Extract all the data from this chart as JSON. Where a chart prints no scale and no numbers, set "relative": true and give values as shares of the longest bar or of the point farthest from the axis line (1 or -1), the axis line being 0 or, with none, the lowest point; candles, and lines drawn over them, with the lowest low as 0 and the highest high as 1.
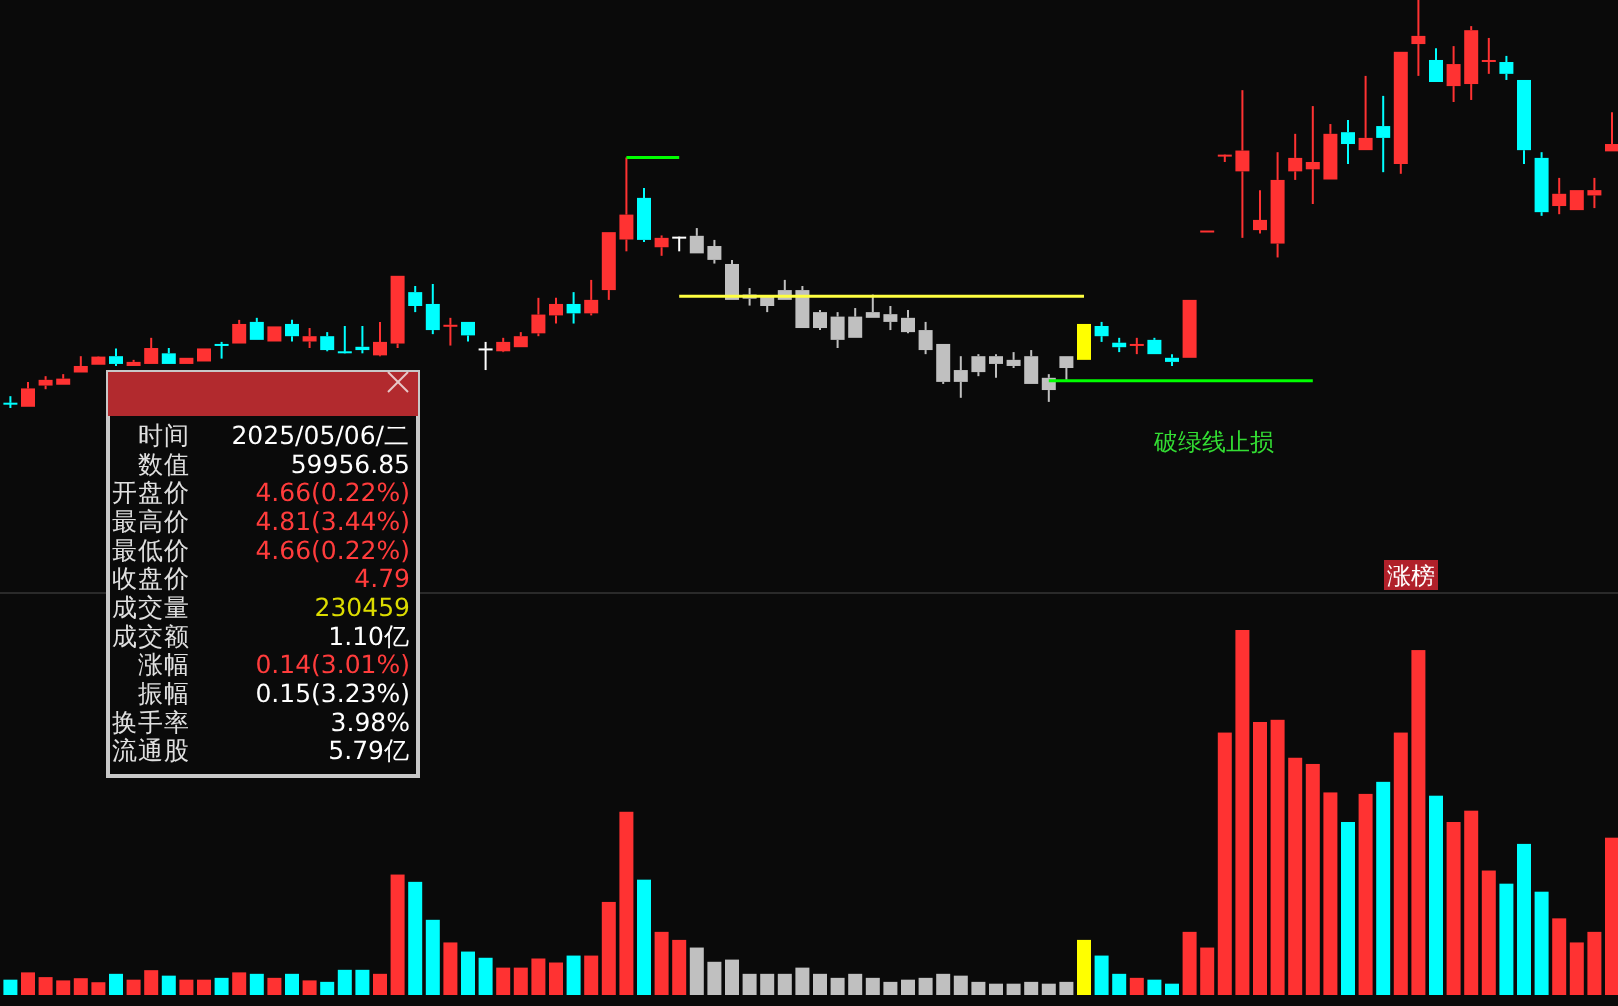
{
  "chart_data": [
    {
      "type": "candlestick",
      "relative": true,
      "categories": [
        null,
        null,
        null,
        null,
        null,
        null,
        null,
        null,
        null,
        null,
        null,
        null,
        null,
        null,
        null,
        null,
        null,
        null,
        null,
        null,
        null,
        null,
        null,
        null,
        null,
        null,
        null,
        null,
        null,
        null,
        null,
        null,
        null,
        null,
        null,
        null,
        null,
        null,
        null,
        null,
        null,
        null,
        null,
        null,
        null,
        null,
        null,
        null,
        null,
        null,
        null,
        null,
        null,
        null,
        null,
        null,
        null,
        null,
        null,
        null,
        null,
        null,
        null,
        null,
        null,
        null,
        null,
        null,
        null,
        null,
        null,
        null,
        null,
        null,
        null,
        null,
        null,
        null,
        null,
        null,
        null,
        null,
        null,
        null,
        null,
        null,
        null,
        null,
        null,
        null,
        null,
        null
      ],
      "ohlc": [
        [
          0.013,
          0.029,
          0,
          0.013
        ],
        [
          0.003,
          0.064,
          0.003,
          0.048
        ],
        [
          0.055,
          0.078,
          0.046,
          0.069
        ],
        [
          0.057,
          0.083,
          0.057,
          0.072
        ],
        [
          0.087,
          0.127,
          0.087,
          0.103
        ],
        [
          0.106,
          0.127,
          0.106,
          0.126
        ],
        [
          0.127,
          0.146,
          0.103,
          0.108
        ],
        [
          0.103,
          0.118,
          0.103,
          0.113
        ],
        [
          0.108,
          0.172,
          0.108,
          0.147
        ],
        [
          0.134,
          0.147,
          0.108,
          0.108
        ],
        [
          0.108,
          0.123,
          0.108,
          0.123
        ],
        [
          0.114,
          0.146,
          0.114,
          0.146
        ],
        [
          0.157,
          0.162,
          0.121,
          0.157
        ],
        [
          0.158,
          0.216,
          0.158,
          0.206
        ],
        [
          0.211,
          0.221,
          0.167,
          0.167
        ],
        [
          0.163,
          0.2,
          0.163,
          0.2
        ],
        [
          0.206,
          0.216,
          0.163,
          0.176
        ],
        [
          0.163,
          0.196,
          0.147,
          0.176
        ],
        [
          0.176,
          0.186,
          0.139,
          0.142
        ],
        [
          0.139,
          0.201,
          0.134,
          0.139
        ],
        [
          0.15,
          0.201,
          0.134,
          0.142
        ],
        [
          0.129,
          0.211,
          0.127,
          0.162
        ],
        [
          0.158,
          0.324,
          0.147,
          0.324
        ],
        [
          0.284,
          0.299,
          0.235,
          0.25
        ],
        [
          0.255,
          0.304,
          0.181,
          0.191
        ],
        [
          0.204,
          0.221,
          0.153,
          0.204
        ],
        [
          0.211,
          0.211,
          0.163,
          0.178
        ],
        [
          0.146,
          0.162,
          0.093,
          0.146
        ],
        [
          0.139,
          0.172,
          0.137,
          0.162
        ],
        [
          0.149,
          0.186,
          0.149,
          0.176
        ],
        [
          0.183,
          0.27,
          0.176,
          0.229
        ],
        [
          0.227,
          0.27,
          0.207,
          0.255
        ],
        [
          0.255,
          0.284,
          0.207,
          0.232
        ],
        [
          0.232,
          0.314,
          0.227,
          0.265
        ],
        [
          0.289,
          0.431,
          0.265,
          0.431
        ],
        [
          0.413,
          0.614,
          0.384,
          0.474
        ],
        [
          0.515,
          0.539,
          0.407,
          0.412
        ],
        [
          0.394,
          0.423,
          0.373,
          0.417
        ],
        [
          0.42,
          0.42,
          0.384,
          0.42
        ],
        [
          0.422,
          0.441,
          0.379,
          0.379
        ],
        [
          0.397,
          0.412,
          0.354,
          0.363
        ],
        [
          0.353,
          0.363,
          0.265,
          0.265
        ],
        [
          0.278,
          0.294,
          0.251,
          0.268
        ],
        [
          0.273,
          0.273,
          0.235,
          0.25
        ],
        [
          0.289,
          0.314,
          0.265,
          0.265
        ],
        [
          0.289,
          0.299,
          0.196,
          0.196
        ],
        [
          0.235,
          0.24,
          0.191,
          0.196
        ],
        [
          0.224,
          0.235,
          0.147,
          0.167
        ],
        [
          0.224,
          0.245,
          0.172,
          0.172
        ],
        [
          0.235,
          0.278,
          0.221,
          0.221
        ],
        [
          0.23,
          0.25,
          0.191,
          0.211
        ],
        [
          0.221,
          0.24,
          0.183,
          0.186
        ],
        [
          0.191,
          0.211,
          0.132,
          0.142
        ],
        [
          0.157,
          0.157,
          0.059,
          0.064
        ],
        [
          0.093,
          0.127,
          0.025,
          0.064
        ],
        [
          0.127,
          0.132,
          0.078,
          0.088
        ],
        [
          0.127,
          0.132,
          0.074,
          0.108
        ],
        [
          0.118,
          0.137,
          0.098,
          0.103
        ],
        [
          0.127,
          0.142,
          0.059,
          0.059
        ],
        [
          0.074,
          0.083,
          0.015,
          0.044
        ],
        [
          0.127,
          0.127,
          0.069,
          0.098
        ],
        [
          0.118,
          0.206,
          0.118,
          0.206
        ],
        [
          0.201,
          0.211,
          0.162,
          0.176
        ],
        [
          0.16,
          0.172,
          0.137,
          0.149
        ],
        [
          0.157,
          0.172,
          0.132,
          0.157
        ],
        [
          0.167,
          0.172,
          0.132,
          0.132
        ],
        [
          0.123,
          0.132,
          0.103,
          0.113
        ],
        [
          0.123,
          0.265,
          0.123,
          0.265
        ],
        [
          0.435,
          0.435,
          0.435,
          0.435
        ],
        [
          0.621,
          0.621,
          0.603,
          0.621
        ],
        [
          0.58,
          0.779,
          0.417,
          0.631
        ],
        [
          0.436,
          0.534,
          0.428,
          0.461
        ],
        [
          0.403,
          0.627,
          0.369,
          0.559
        ],
        [
          0.58,
          0.672,
          0.559,
          0.613
        ],
        [
          0.585,
          0.74,
          0.5,
          0.603
        ],
        [
          0.56,
          0.696,
          0.56,
          0.672
        ],
        [
          0.676,
          0.706,
          0.598,
          0.647
        ],
        [
          0.632,
          0.814,
          0.632,
          0.662
        ],
        [
          0.691,
          0.765,
          0.578,
          0.662
        ],
        [
          0.598,
          0.873,
          0.574,
          0.873
        ],
        [
          0.892,
          1,
          0.814,
          0.912
        ],
        [
          0.853,
          0.882,
          0.799,
          0.799
        ],
        [
          0.789,
          0.887,
          0.75,
          0.843
        ],
        [
          0.794,
          0.936,
          0.755,
          0.926
        ],
        [
          0.853,
          0.907,
          0.819,
          0.853
        ],
        [
          0.848,
          0.863,
          0.804,
          0.819
        ],
        [
          0.804,
          0.804,
          0.598,
          0.632
        ],
        [
          0.613,
          0.627,
          0.471,
          0.48
        ],
        [
          0.495,
          0.564,
          0.475,
          0.525
        ],
        [
          0.485,
          0.534,
          0.485,
          0.534
        ],
        [
          0.521,
          0.564,
          0.49,
          0.534
        ],
        [
          0.629,
          0.725,
          0.629,
          0.647
        ]
      ],
      "colors": [
        "#00ffff",
        "#ff3232",
        "#ff3232",
        "#ff3232",
        "#ff3232",
        "#ff3232",
        "#00ffff",
        "#ff3232",
        "#ff3232",
        "#00ffff",
        "#ff3232",
        "#ff3232",
        "#00ffff",
        "#ff3232",
        "#00ffff",
        "#ff3232",
        "#00ffff",
        "#ff3232",
        "#00ffff",
        "#00ffff",
        "#00ffff",
        "#ff3232",
        "#ff3232",
        "#00ffff",
        "#00ffff",
        "#ff3232",
        "#00ffff",
        "#ffffff",
        "#ff3232",
        "#ff3232",
        "#ff3232",
        "#ff3232",
        "#00ffff",
        "#ff3232",
        "#ff3232",
        "#ff3232",
        "#00ffff",
        "#ff3232",
        "#ffffff",
        "#c0c0c0",
        "#c0c0c0",
        "#c0c0c0",
        "#c0c0c0",
        "#c0c0c0",
        "#c0c0c0",
        "#c0c0c0",
        "#c0c0c0",
        "#c0c0c0",
        "#c0c0c0",
        "#c0c0c0",
        "#c0c0c0",
        "#c0c0c0",
        "#c0c0c0",
        "#c0c0c0",
        "#c0c0c0",
        "#c0c0c0",
        "#c0c0c0",
        "#c0c0c0",
        "#c0c0c0",
        "#c0c0c0",
        "#c0c0c0",
        "#ffff00",
        "#00ffff",
        "#00ffff",
        "#ff3232",
        "#00ffff",
        "#00ffff",
        "#ff3232",
        "#ff3232",
        "#ff3232",
        "#ff3232",
        "#ff3232",
        "#ff3232",
        "#ff3232",
        "#ff3232",
        "#ff3232",
        "#00ffff",
        "#ff3232",
        "#00ffff",
        "#ff3232",
        "#ff3232",
        "#00ffff",
        "#ff3232",
        "#ff3232",
        "#ff3232",
        "#00ffff",
        "#00ffff",
        "#00ffff",
        "#ff3232",
        "#ff3232",
        "#ff3232",
        "#ff3232"
      ],
      "series": [
        {
          "type": "line",
          "values": [
            null,
            null,
            null,
            null,
            null,
            null,
            null,
            null,
            null,
            null,
            null,
            null,
            null,
            null,
            null,
            null,
            null,
            null,
            null,
            null,
            null,
            null,
            null,
            null,
            null,
            null,
            null,
            null,
            null,
            null,
            null,
            null,
            null,
            null,
            null,
            0.614,
            0.614,
            0.614,
            0.614,
            null,
            null,
            null,
            null,
            null,
            null,
            null,
            null,
            null,
            null,
            null,
            null,
            null,
            null,
            null,
            null,
            null,
            null,
            null,
            null,
            null,
            null,
            null,
            null,
            null,
            null,
            null,
            null,
            null,
            null,
            null,
            null,
            null,
            null,
            null,
            null,
            null,
            null,
            null,
            null,
            null,
            null,
            null,
            null,
            null,
            null,
            null,
            null,
            null,
            null,
            null,
            null,
            null
          ],
          "color": "#00ff00"
        },
        {
          "type": "line",
          "values": [
            null,
            null,
            null,
            null,
            null,
            null,
            null,
            null,
            null,
            null,
            null,
            null,
            null,
            null,
            null,
            null,
            null,
            null,
            null,
            null,
            null,
            null,
            null,
            null,
            null,
            null,
            null,
            null,
            null,
            null,
            null,
            null,
            null,
            null,
            null,
            null,
            null,
            null,
            0.274,
            0.274,
            0.274,
            0.274,
            0.274,
            0.274,
            0.274,
            0.274,
            0.274,
            0.274,
            0.274,
            0.274,
            0.274,
            0.274,
            0.274,
            0.274,
            0.274,
            0.274,
            0.274,
            0.274,
            0.274,
            0.274,
            0.274,
            0.274,
            null,
            null,
            null,
            null,
            null,
            null,
            null,
            null,
            null,
            null,
            null,
            null,
            null,
            null,
            null,
            null,
            null,
            null,
            null,
            null,
            null,
            null,
            null,
            null,
            null,
            null,
            null,
            null,
            null,
            null
          ],
          "color": "#ffff40"
        },
        {
          "type": "line",
          "values": [
            null,
            null,
            null,
            null,
            null,
            null,
            null,
            null,
            null,
            null,
            null,
            null,
            null,
            null,
            null,
            null,
            null,
            null,
            null,
            null,
            null,
            null,
            null,
            null,
            null,
            null,
            null,
            null,
            null,
            null,
            null,
            null,
            null,
            null,
            null,
            null,
            null,
            null,
            null,
            null,
            null,
            null,
            null,
            null,
            null,
            null,
            null,
            null,
            null,
            null,
            null,
            null,
            null,
            null,
            null,
            null,
            null,
            null,
            null,
            0.067,
            0.067,
            0.067,
            0.067,
            0.067,
            0.067,
            0.067,
            0.067,
            0.067,
            0.067,
            0.067,
            0.067,
            0.067,
            0.067,
            0.067,
            0.067,
            null,
            null,
            null,
            null,
            null,
            null,
            null,
            null,
            null,
            null,
            null,
            null,
            null,
            null,
            null,
            null,
            null
          ],
          "color": "#00ff00"
        }
      ],
      "annotations": [
        "破绿线止损"
      ]
    },
    {
      "type": "bar",
      "relative": true,
      "categories": [
        null,
        null,
        null,
        null,
        null,
        null,
        null,
        null,
        null,
        null,
        null,
        null,
        null,
        null,
        null,
        null,
        null,
        null,
        null,
        null,
        null,
        null,
        null,
        null,
        null,
        null,
        null,
        null,
        null,
        null,
        null,
        null,
        null,
        null,
        null,
        null,
        null,
        null,
        null,
        null,
        null,
        null,
        null,
        null,
        null,
        null,
        null,
        null,
        null,
        null,
        null,
        null,
        null,
        null,
        null,
        null,
        null,
        null,
        null,
        null,
        null,
        null,
        null,
        null,
        null,
        null,
        null,
        null,
        null,
        null,
        null,
        null,
        null,
        null,
        null,
        null,
        null,
        null,
        null,
        null,
        null,
        null,
        null,
        null,
        null,
        null,
        null,
        null,
        null,
        null,
        null,
        null
      ],
      "values": [
        0.042,
        0.062,
        0.049,
        0.04,
        0.046,
        0.035,
        0.058,
        0.042,
        0.068,
        0.053,
        0.042,
        0.042,
        0.047,
        0.062,
        0.058,
        0.047,
        0.058,
        0.04,
        0.036,
        0.069,
        0.069,
        0.058,
        0.33,
        0.31,
        0.206,
        0.144,
        0.119,
        0.102,
        0.075,
        0.075,
        0.1,
        0.089,
        0.108,
        0.108,
        0.255,
        0.502,
        0.316,
        0.173,
        0.151,
        0.13,
        0.091,
        0.097,
        0.058,
        0.058,
        0.058,
        0.075,
        0.058,
        0.047,
        0.058,
        0.047,
        0.036,
        0.042,
        0.047,
        0.058,
        0.053,
        0.036,
        0.031,
        0.031,
        0.036,
        0.031,
        0.036,
        0.151,
        0.108,
        0.058,
        0.047,
        0.042,
        0.031,
        0.173,
        0.13,
        0.719,
        1,
        0.748,
        0.754,
        0.65,
        0.633,
        0.555,
        0.474,
        0.551,
        0.584,
        0.719,
        0.945,
        0.546,
        0.474,
        0.505,
        0.341,
        0.305,
        0.414,
        0.283,
        0.21,
        0.144,
        0.173,
        0.431
      ],
      "colors": [
        "#00ffff",
        "#ff3232",
        "#ff3232",
        "#ff3232",
        "#ff3232",
        "#ff3232",
        "#00ffff",
        "#ff3232",
        "#ff3232",
        "#00ffff",
        "#ff3232",
        "#ff3232",
        "#00ffff",
        "#ff3232",
        "#00ffff",
        "#ff3232",
        "#00ffff",
        "#ff3232",
        "#00ffff",
        "#00ffff",
        "#00ffff",
        "#ff3232",
        "#ff3232",
        "#00ffff",
        "#00ffff",
        "#ff3232",
        "#00ffff",
        "#00ffff",
        "#ff3232",
        "#ff3232",
        "#ff3232",
        "#ff3232",
        "#00ffff",
        "#ff3232",
        "#ff3232",
        "#ff3232",
        "#00ffff",
        "#ff3232",
        "#ff3232",
        "#c0c0c0",
        "#c0c0c0",
        "#c0c0c0",
        "#c0c0c0",
        "#c0c0c0",
        "#c0c0c0",
        "#c0c0c0",
        "#c0c0c0",
        "#c0c0c0",
        "#c0c0c0",
        "#c0c0c0",
        "#c0c0c0",
        "#c0c0c0",
        "#c0c0c0",
        "#c0c0c0",
        "#c0c0c0",
        "#c0c0c0",
        "#c0c0c0",
        "#c0c0c0",
        "#c0c0c0",
        "#c0c0c0",
        "#c0c0c0",
        "#ffff00",
        "#00ffff",
        "#00ffff",
        "#ff3232",
        "#00ffff",
        "#00ffff",
        "#ff3232",
        "#ff3232",
        "#ff3232",
        "#ff3232",
        "#ff3232",
        "#ff3232",
        "#ff3232",
        "#ff3232",
        "#ff3232",
        "#00ffff",
        "#ff3232",
        "#00ffff",
        "#ff3232",
        "#ff3232",
        "#00ffff",
        "#ff3232",
        "#ff3232",
        "#ff3232",
        "#00ffff",
        "#00ffff",
        "#00ffff",
        "#ff3232",
        "#ff3232",
        "#ff3232",
        "#ff3232"
      ],
      "annotations": [
        "涨榜"
      ]
    },
    {
      "type": "other",
      "categories": [
        "时间",
        "数值",
        "开盘价",
        "最高价",
        "最低价",
        "收盘价",
        "成交量",
        "成交额",
        "涨幅",
        "振幅",
        "换手率",
        "流通股"
      ],
      "value_labels": [
        "2025/05/06/二",
        "59956.85",
        "4.66(0.22%)",
        "4.81(3.44%)",
        "4.66(0.22%)",
        "4.79",
        "230459",
        "1.10亿",
        "0.14(3.01%)",
        "0.15(3.23%)",
        "3.98%",
        "5.79亿"
      ],
      "colors": [
        "#ffffff",
        "#ffffff",
        "#ff3c3c",
        "#ff3c3c",
        "#ff3c3c",
        "#ff3c3c",
        "#dcdc00",
        "#ffffff",
        "#ff3c3c",
        "#ffffff",
        "#ffffff",
        "#ffffff"
      ]
    }
  ]
}
